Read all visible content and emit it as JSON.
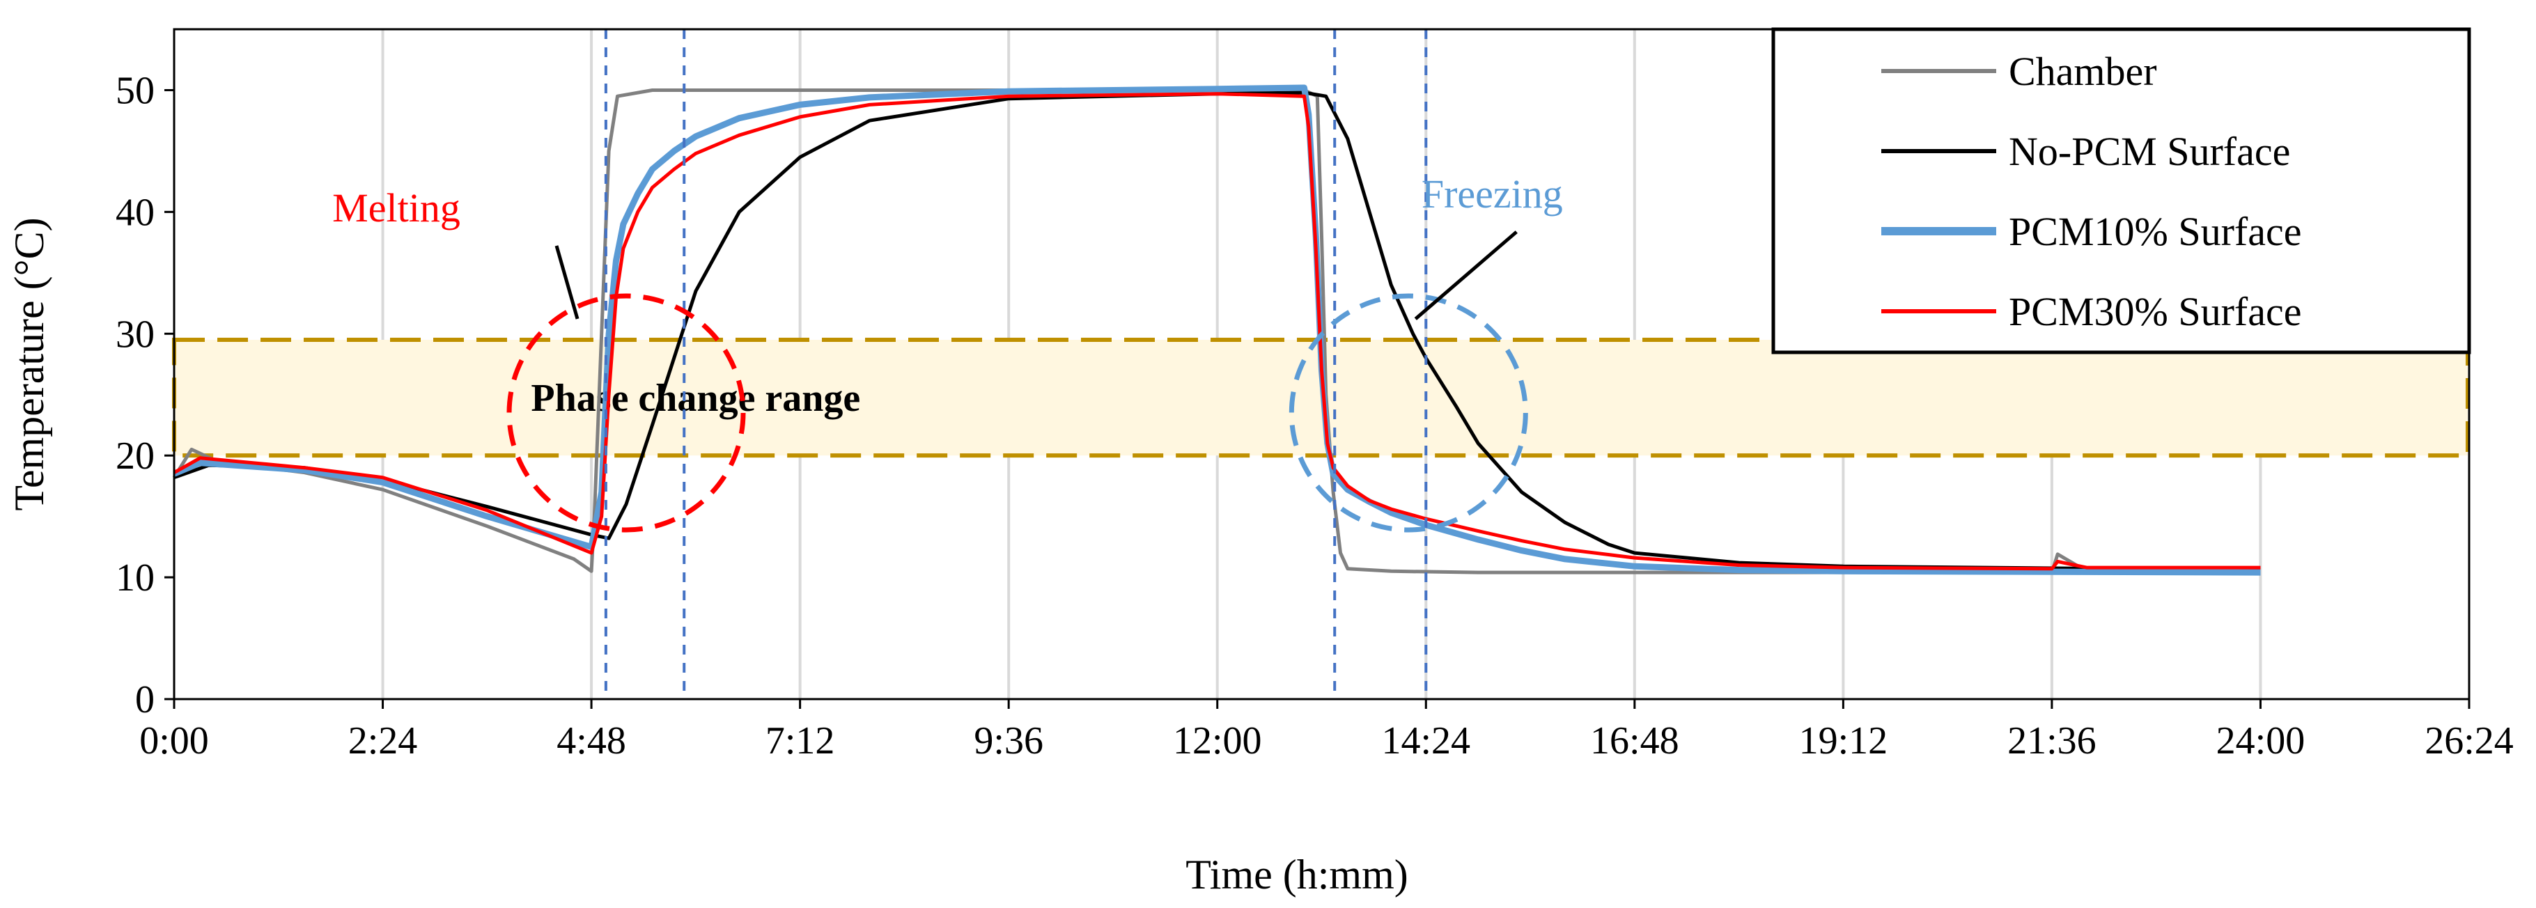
{
  "chart_data": {
    "type": "line",
    "title": "",
    "xlabel": "Time (h:mm)",
    "ylabel": "Temperature (°C)",
    "xlim": [
      "0:00",
      "26:24"
    ],
    "ylim": [
      0,
      55
    ],
    "xticks": [
      "0:00",
      "2:24",
      "4:48",
      "7:12",
      "9:36",
      "12:00",
      "14:24",
      "16:48",
      "19:12",
      "21:36",
      "24:00",
      "26:24"
    ],
    "yticks": [
      0,
      10,
      20,
      30,
      40,
      50
    ],
    "grid": "vertical",
    "legend_position": "top-right",
    "series": [
      {
        "name": "Chamber",
        "color": "#808080",
        "x": [
          "0:00",
          "0:12",
          "0:30",
          "1:30",
          "2:24",
          "3:36",
          "4:36",
          "4:48",
          "4:50",
          "4:55",
          "5:00",
          "5:06",
          "5:30",
          "7:12",
          "9:36",
          "12:00",
          "13:00",
          "13:09",
          "13:12",
          "13:15",
          "13:20",
          "13:25",
          "13:30",
          "14:00",
          "15:00",
          "16:48",
          "19:12",
          "21:36",
          "21:40",
          "22:00",
          "24:00"
        ],
        "values": [
          18.2,
          20.5,
          19.5,
          18.6,
          17.2,
          14.2,
          11.5,
          10.5,
          15,
          30,
          45,
          49.5,
          50,
          50,
          50,
          50,
          50,
          49.5,
          38,
          25,
          17,
          12,
          10.7,
          10.5,
          10.4,
          10.4,
          10.4,
          10.4,
          11.9,
          10.5,
          10.5
        ]
      },
      {
        "name": "No-PCM Surface",
        "color": "#000000",
        "x": [
          "0:00",
          "0:24",
          "1:30",
          "2:24",
          "3:36",
          "4:48",
          "5:00",
          "5:12",
          "5:30",
          "5:45",
          "6:00",
          "6:30",
          "7:12",
          "8:00",
          "9:36",
          "12:00",
          "13:00",
          "13:15",
          "13:30",
          "13:45",
          "14:00",
          "14:15",
          "14:24",
          "14:45",
          "15:00",
          "15:30",
          "16:00",
          "16:30",
          "16:48",
          "18:00",
          "19:12",
          "24:00"
        ],
        "values": [
          18.2,
          19.2,
          19.0,
          18.0,
          15.8,
          13.5,
          13.2,
          16,
          22.5,
          28,
          33.5,
          40,
          44.5,
          47.5,
          49.3,
          49.7,
          49.8,
          49.5,
          46,
          40,
          34,
          30,
          28,
          24,
          21,
          17,
          14.5,
          12.7,
          12.0,
          11.2,
          10.9,
          10.6
        ]
      },
      {
        "name": "PCM10% Surface",
        "color": "#5b9bd5",
        "x": [
          "0:00",
          "0:18",
          "1:30",
          "2:24",
          "3:36",
          "4:48",
          "4:55",
          "5:00",
          "5:05",
          "5:10",
          "5:20",
          "5:30",
          "5:45",
          "6:00",
          "6:30",
          "7:12",
          "8:00",
          "9:36",
          "12:00",
          "13:00",
          "13:03",
          "13:08",
          "13:12",
          "13:16",
          "13:20",
          "13:30",
          "13:45",
          "14:00",
          "14:24",
          "15:00",
          "15:30",
          "16:00",
          "16:48",
          "18:00",
          "19:12",
          "24:00"
        ],
        "values": [
          18.5,
          19.4,
          18.8,
          17.8,
          15.0,
          12.5,
          17,
          30,
          36,
          39,
          41.5,
          43.5,
          45,
          46.2,
          47.7,
          48.8,
          49.4,
          49.9,
          50.1,
          50.2,
          48,
          38,
          27,
          21,
          18.5,
          17.2,
          16.2,
          15.3,
          14.3,
          13.1,
          12.2,
          11.5,
          10.9,
          10.6,
          10.5,
          10.4
        ]
      },
      {
        "name": "PCM30% Surface",
        "color": "#ff0000",
        "x": [
          "0:00",
          "0:18",
          "1:30",
          "2:24",
          "3:36",
          "4:48",
          "4:55",
          "5:00",
          "5:05",
          "5:10",
          "5:20",
          "5:30",
          "5:45",
          "6:00",
          "6:30",
          "7:12",
          "8:00",
          "9:36",
          "12:00",
          "13:00",
          "13:03",
          "13:08",
          "13:12",
          "13:16",
          "13:20",
          "13:30",
          "13:45",
          "14:00",
          "14:24",
          "15:00",
          "15:30",
          "16:00",
          "16:48",
          "18:00",
          "19:12",
          "21:36",
          "21:40",
          "22:00",
          "24:00"
        ],
        "values": [
          18.6,
          19.8,
          19.0,
          18.2,
          15.5,
          12.0,
          15,
          25,
          33,
          37,
          40,
          42,
          43.5,
          44.8,
          46.3,
          47.8,
          48.8,
          49.5,
          49.7,
          49.5,
          47,
          37,
          27,
          21,
          19,
          17.5,
          16.3,
          15.6,
          14.8,
          13.8,
          13.0,
          12.3,
          11.6,
          11.0,
          10.8,
          10.7,
          11.3,
          10.8,
          10.8
        ]
      }
    ],
    "phase_change_band": {
      "label": "Phase change range",
      "ymin": 20,
      "ymax": 29.5
    },
    "reference_lines": [
      "4:58",
      "5:52",
      "13:21",
      "14:24"
    ],
    "annotations": [
      {
        "text": "Melting",
        "color": "#ff0000",
        "target_x": "5:12",
        "target_y": 23.5
      },
      {
        "text": "Freezing",
        "color": "#5b9bd5",
        "target_x": "14:12",
        "target_y": 23.5
      }
    ]
  }
}
